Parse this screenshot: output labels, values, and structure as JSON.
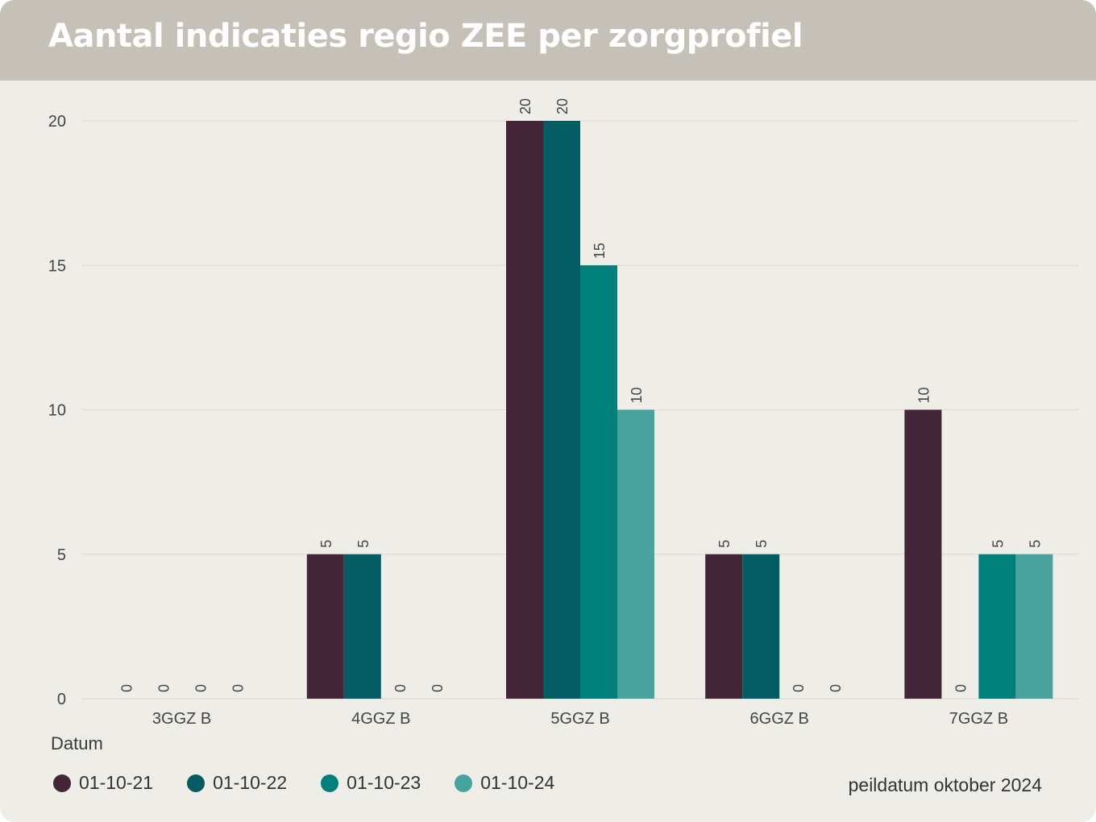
{
  "title": "Aantal indicaties regio ZEE per zorgprofiel",
  "legend_title": "Datum",
  "footnote": "peildatum oktober 2024",
  "chart_data": {
    "type": "bar",
    "categories": [
      "3GGZ B",
      "4GGZ B",
      "5GGZ B",
      "6GGZ B",
      "7GGZ B"
    ],
    "series": [
      {
        "name": "01-10-21",
        "color": "#432537",
        "values": [
          0,
          5,
          20,
          5,
          10
        ]
      },
      {
        "name": "01-10-22",
        "color": "#025c62",
        "values": [
          0,
          5,
          20,
          5,
          0
        ]
      },
      {
        "name": "01-10-23",
        "color": "#017f7a",
        "values": [
          0,
          0,
          15,
          0,
          5
        ]
      },
      {
        "name": "01-10-24",
        "color": "#48a39f",
        "values": [
          0,
          0,
          10,
          0,
          5
        ]
      }
    ],
    "yticks": [
      0,
      5,
      10,
      15,
      20
    ],
    "ylim": [
      0,
      20
    ],
    "grid": true,
    "legend_position": "bottom-left"
  }
}
